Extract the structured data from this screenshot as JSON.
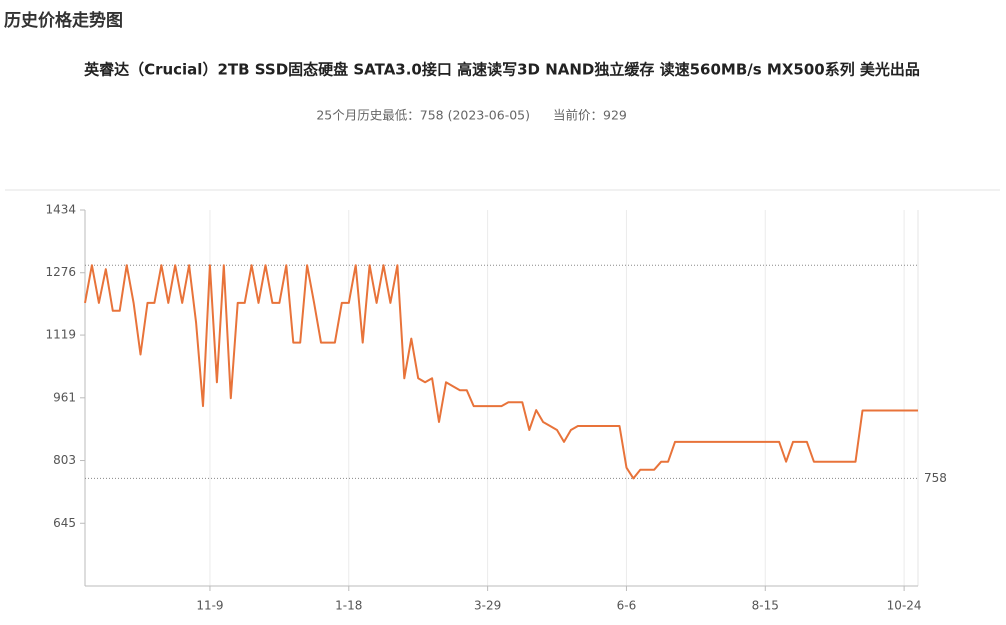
{
  "chart_data": {
    "type": "line",
    "header": "历史价格走势图",
    "title": "英睿达（Crucial）2TB SSD固态硬盘 SATA3.0接口 高速读写3D NAND独立缓存 读速560MB/s MX500系列 美光出品",
    "lowest_label": "25个月历史最低：758 (2023-06-05)",
    "current_label": "当前价：929",
    "color": "#e8733a",
    "ylim": [
      487,
      1434
    ],
    "yticks": [
      645,
      803,
      961,
      1119,
      1276,
      1434
    ],
    "max_line": 1295,
    "min_line": 758,
    "categories": [
      null,
      null,
      null,
      null,
      null,
      null,
      null,
      null,
      null,
      null,
      null,
      null,
      null,
      null,
      null,
      null,
      null,
      null,
      "11-9",
      null,
      null,
      null,
      null,
      null,
      null,
      null,
      null,
      null,
      null,
      null,
      null,
      null,
      null,
      null,
      null,
      null,
      null,
      null,
      "1-18",
      null,
      null,
      null,
      null,
      null,
      null,
      null,
      null,
      null,
      null,
      null,
      null,
      null,
      null,
      null,
      null,
      null,
      null,
      null,
      "3-29",
      null,
      null,
      null,
      null,
      null,
      null,
      null,
      null,
      null,
      null,
      null,
      null,
      null,
      null,
      null,
      null,
      null,
      null,
      null,
      "6-6",
      null,
      null,
      null,
      null,
      null,
      null,
      null,
      null,
      null,
      null,
      null,
      null,
      null,
      null,
      null,
      null,
      null,
      null,
      null,
      "8-15",
      null,
      null,
      null,
      null,
      null,
      null,
      null,
      null,
      null,
      null,
      null,
      null,
      null,
      null,
      null,
      null,
      null,
      null,
      null,
      "10-24",
      null,
      null
    ],
    "values": [
      1200,
      1295,
      1200,
      1285,
      1180,
      1180,
      1295,
      1200,
      1070,
      1200,
      1200,
      1295,
      1200,
      1295,
      1200,
      1295,
      1150,
      940,
      1295,
      1000,
      1295,
      960,
      1200,
      1200,
      1295,
      1200,
      1295,
      1200,
      1200,
      1295,
      1100,
      1100,
      1295,
      1200,
      1100,
      1100,
      1100,
      1200,
      1200,
      1295,
      1100,
      1295,
      1200,
      1295,
      1200,
      1295,
      1010,
      1110,
      1010,
      1000,
      1010,
      900,
      1000,
      990,
      980,
      980,
      940,
      940,
      940,
      940,
      940,
      950,
      950,
      950,
      880,
      930,
      900,
      890,
      880,
      850,
      880,
      890,
      890,
      890,
      890,
      890,
      890,
      890,
      785,
      758,
      780,
      780,
      780,
      800,
      800,
      850,
      850,
      850,
      850,
      850,
      850,
      850,
      850,
      850,
      850,
      850,
      850,
      850,
      850,
      850,
      850,
      800,
      850,
      850,
      850,
      800,
      800,
      800,
      800,
      800,
      800,
      800,
      929,
      929,
      929,
      929,
      929,
      929,
      929,
      929,
      929
    ]
  }
}
